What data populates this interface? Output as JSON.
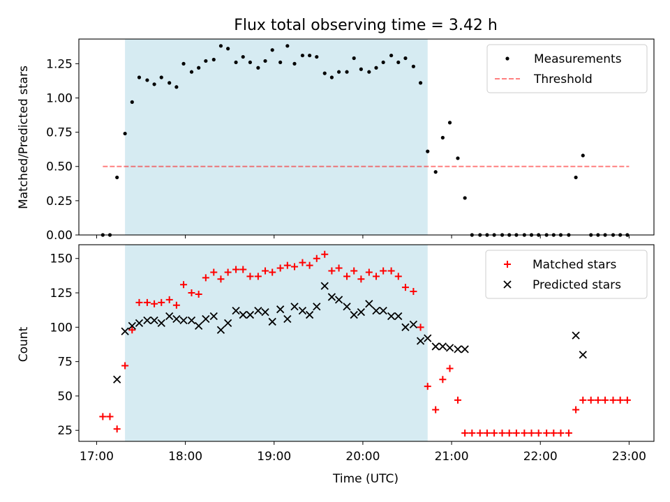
{
  "chart_data": [
    {
      "type": "scatter",
      "title": "Flux total observing time = 3.42 h",
      "xlabel": "",
      "ylabel": "Matched/Predicted stars",
      "xlim": [
        16.8,
        23.28
      ],
      "ylim": [
        0,
        1.43
      ],
      "xticks": [
        17,
        18,
        19,
        20,
        21,
        22,
        23
      ],
      "yticks": [
        0.0,
        0.25,
        0.5,
        0.75,
        1.0,
        1.25
      ],
      "ytick_labels": [
        "0.00",
        "0.25",
        "0.50",
        "0.75",
        "1.00",
        "1.25"
      ],
      "shaded_range": [
        17.32,
        20.73
      ],
      "threshold": {
        "value": 0.5,
        "x_start": 17.07,
        "x_end": 23.0
      },
      "legend": [
        "Measurements",
        "Threshold"
      ],
      "series": [
        {
          "name": "Measurements",
          "x": [
            17.07,
            17.15,
            17.23,
            17.32,
            17.4,
            17.48,
            17.57,
            17.65,
            17.73,
            17.82,
            17.9,
            17.98,
            18.07,
            18.15,
            18.23,
            18.32,
            18.4,
            18.48,
            18.57,
            18.65,
            18.73,
            18.82,
            18.9,
            18.98,
            19.07,
            19.15,
            19.23,
            19.32,
            19.4,
            19.48,
            19.57,
            19.65,
            19.73,
            19.82,
            19.9,
            19.98,
            20.07,
            20.15,
            20.23,
            20.32,
            20.4,
            20.48,
            20.57,
            20.65,
            20.73,
            20.82,
            20.9,
            20.98,
            21.07,
            21.15,
            21.23,
            21.32,
            21.4,
            21.48,
            21.57,
            21.65,
            21.73,
            21.82,
            21.9,
            21.98,
            22.07,
            22.15,
            22.23,
            22.32,
            22.4,
            22.48,
            22.57,
            22.65,
            22.73,
            22.82,
            22.9,
            22.98
          ],
          "y": [
            0,
            0,
            0.42,
            0.74,
            0.97,
            1.15,
            1.13,
            1.1,
            1.15,
            1.11,
            1.08,
            1.25,
            1.19,
            1.22,
            1.27,
            1.28,
            1.38,
            1.36,
            1.26,
            1.3,
            1.26,
            1.22,
            1.27,
            1.35,
            1.26,
            1.38,
            1.25,
            1.31,
            1.31,
            1.3,
            1.18,
            1.15,
            1.19,
            1.19,
            1.29,
            1.21,
            1.19,
            1.22,
            1.26,
            1.31,
            1.26,
            1.29,
            1.23,
            1.11,
            0.61,
            0.46,
            0.71,
            0.82,
            0.56,
            0.27,
            0,
            0,
            0,
            0,
            0,
            0,
            0,
            0,
            0,
            0,
            0,
            0,
            0,
            0,
            0.42,
            0.58,
            0,
            0,
            0,
            0,
            0,
            0
          ]
        }
      ]
    },
    {
      "type": "scatter",
      "title": "",
      "xlabel": "Time (UTC)",
      "ylabel": "Count",
      "xlim": [
        16.8,
        23.28
      ],
      "ylim": [
        17,
        160
      ],
      "xticks": [
        17,
        18,
        19,
        20,
        21,
        22,
        23
      ],
      "xtick_labels": [
        "17:00",
        "18:00",
        "19:00",
        "20:00",
        "21:00",
        "22:00",
        "23:00"
      ],
      "yticks": [
        25,
        50,
        75,
        100,
        125,
        150
      ],
      "ytick_labels": [
        "25",
        "50",
        "75",
        "100",
        "125",
        "150"
      ],
      "shaded_range": [
        17.32,
        20.73
      ],
      "legend": [
        "Matched stars",
        "Predicted stars"
      ],
      "series": [
        {
          "name": "Matched stars",
          "color": "#ff0000",
          "marker": "+",
          "x": [
            17.07,
            17.15,
            17.23,
            17.32,
            17.4,
            17.48,
            17.57,
            17.65,
            17.73,
            17.82,
            17.9,
            17.98,
            18.07,
            18.15,
            18.23,
            18.32,
            18.4,
            18.48,
            18.57,
            18.65,
            18.73,
            18.82,
            18.9,
            18.98,
            19.07,
            19.15,
            19.23,
            19.32,
            19.4,
            19.48,
            19.57,
            19.65,
            19.73,
            19.82,
            19.9,
            19.98,
            20.07,
            20.15,
            20.23,
            20.32,
            20.4,
            20.48,
            20.57,
            20.65,
            20.73,
            20.82,
            20.9,
            20.98,
            21.07,
            21.15,
            21.23,
            21.32,
            21.4,
            21.48,
            21.57,
            21.65,
            21.73,
            21.82,
            21.9,
            21.98,
            22.07,
            22.15,
            22.23,
            22.32,
            22.4,
            22.48,
            22.57,
            22.65,
            22.73,
            22.82,
            22.9,
            22.98
          ],
          "y": [
            35,
            35,
            26,
            72,
            98,
            118,
            118,
            117,
            118,
            120,
            116,
            131,
            125,
            124,
            136,
            140,
            135,
            140,
            142,
            142,
            137,
            137,
            141,
            140,
            143,
            145,
            144,
            147,
            145,
            150,
            153,
            141,
            143,
            137,
            141,
            135,
            140,
            137,
            141,
            141,
            137,
            129,
            126,
            100,
            57,
            40,
            62,
            70,
            47,
            23,
            23,
            23,
            23,
            23,
            23,
            23,
            23,
            23,
            23,
            23,
            23,
            23,
            23,
            23,
            40,
            47,
            47,
            47,
            47,
            47,
            47,
            47
          ]
        },
        {
          "name": "Predicted stars",
          "color": "#000000",
          "marker": "x",
          "x": [
            17.23,
            17.32,
            17.4,
            17.48,
            17.57,
            17.65,
            17.73,
            17.82,
            17.9,
            17.98,
            18.07,
            18.15,
            18.23,
            18.32,
            18.4,
            18.48,
            18.57,
            18.65,
            18.73,
            18.82,
            18.9,
            18.98,
            19.07,
            19.15,
            19.23,
            19.32,
            19.4,
            19.48,
            19.57,
            19.65,
            19.73,
            19.82,
            19.9,
            19.98,
            20.07,
            20.15,
            20.23,
            20.32,
            20.4,
            20.48,
            20.57,
            20.65,
            20.73,
            20.82,
            20.9,
            20.98,
            21.07,
            21.15,
            22.4,
            22.48
          ],
          "y": [
            62,
            97,
            101,
            103,
            105,
            105,
            103,
            108,
            106,
            105,
            105,
            101,
            106,
            108,
            98,
            103,
            112,
            109,
            109,
            112,
            111,
            104,
            113,
            106,
            115,
            112,
            109,
            115,
            130,
            122,
            120,
            115,
            109,
            111,
            117,
            112,
            112,
            108,
            108,
            100,
            102,
            90,
            92,
            86,
            86,
            85,
            84,
            84,
            94,
            80
          ]
        }
      ]
    }
  ]
}
